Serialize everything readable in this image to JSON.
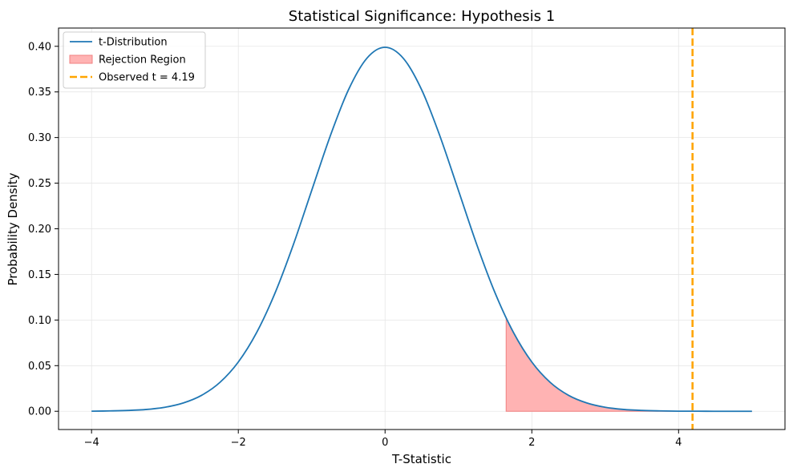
{
  "chart_data": {
    "type": "line",
    "title": "Statistical Significance: Hypothesis 1",
    "xlabel": "T-Statistic",
    "ylabel": "Probability Density",
    "xlim": [
      -4.45,
      5.45
    ],
    "ylim": [
      -0.02,
      0.42
    ],
    "x_ticks": [
      -4,
      -2,
      0,
      2,
      4
    ],
    "y_ticks": [
      0.0,
      0.05,
      0.1,
      0.15,
      0.2,
      0.25,
      0.3,
      0.35,
      0.4
    ],
    "x_tick_labels": [
      "−4",
      "−2",
      "0",
      "2",
      "4"
    ],
    "y_tick_labels": [
      "0.00",
      "0.05",
      "0.10",
      "0.15",
      "0.20",
      "0.25",
      "0.30",
      "0.35",
      "0.40"
    ],
    "grid": true,
    "legend_position": "top-left",
    "series": [
      {
        "name": "t-Distribution",
        "kind": "line",
        "color": "#1f77b4",
        "x": [
          -4.0,
          -3.75,
          -3.5,
          -3.25,
          -3.0,
          -2.75,
          -2.5,
          -2.25,
          -2.0,
          -1.75,
          -1.5,
          -1.25,
          -1.0,
          -0.75,
          -0.5,
          -0.25,
          0.0,
          0.25,
          0.5,
          0.75,
          1.0,
          1.25,
          1.5,
          1.75,
          2.0,
          2.25,
          2.5,
          2.75,
          3.0,
          3.25,
          3.5,
          3.75,
          4.0,
          4.25,
          4.5,
          4.75,
          5.0
        ],
        "y": [
          0.0001,
          0.0004,
          0.0009,
          0.002,
          0.0044,
          0.0091,
          0.0175,
          0.0317,
          0.054,
          0.0863,
          0.1295,
          0.1826,
          0.242,
          0.3011,
          0.3521,
          0.3867,
          0.3989,
          0.3867,
          0.3521,
          0.3011,
          0.242,
          0.1826,
          0.1295,
          0.0863,
          0.054,
          0.0317,
          0.0175,
          0.0091,
          0.0044,
          0.002,
          0.0009,
          0.0004,
          0.0001,
          0.0001,
          0.0,
          0.0,
          0.0
        ]
      },
      {
        "name": "Rejection Region",
        "kind": "area",
        "color": "#ffb3b3",
        "edge_color": "#f08080",
        "x": [
          1.65,
          1.75,
          2.0,
          2.25,
          2.5,
          2.75,
          3.0,
          3.25,
          3.5,
          3.75,
          4.0,
          4.25,
          4.5,
          4.75,
          5.0
        ],
        "y": [
          0.1023,
          0.0863,
          0.054,
          0.0317,
          0.0175,
          0.0091,
          0.0044,
          0.002,
          0.0009,
          0.0004,
          0.0001,
          0.0001,
          0.0,
          0.0,
          0.0
        ]
      },
      {
        "name": "Observed t = 4.19",
        "kind": "vline",
        "color": "#ffa500",
        "x": 4.19
      }
    ]
  }
}
